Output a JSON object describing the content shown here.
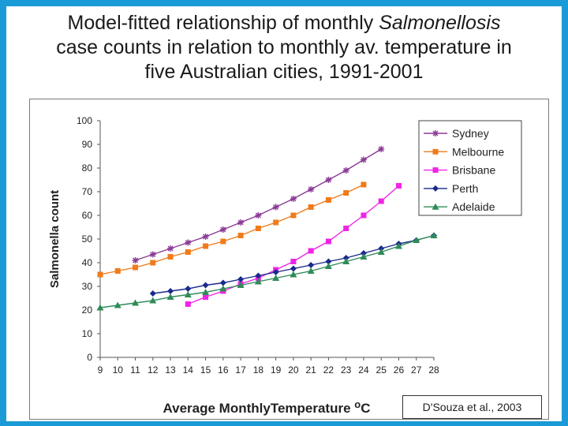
{
  "slide": {
    "title_part1": "Model-fitted relationship  of monthly ",
    "title_italic": "Salmonellosis",
    "title_line2": "case counts in relation  to monthly  av. temperature  in",
    "title_line3": "five Australian  cities, 1991-2001",
    "citation": "D'Souza et al., 2003"
  },
  "chart_data": {
    "type": "line",
    "title": "",
    "xlabel": "Average MonthlyTemperature ",
    "xlabel_unit": "oC",
    "ylabel": "Salmonella count",
    "xlim": [
      9,
      28
    ],
    "ylim": [
      0,
      100
    ],
    "x_ticks": [
      9,
      10,
      11,
      12,
      13,
      14,
      15,
      16,
      17,
      18,
      19,
      20,
      21,
      22,
      23,
      24,
      25,
      26,
      27,
      28
    ],
    "y_ticks": [
      0,
      10,
      20,
      30,
      40,
      50,
      60,
      70,
      80,
      90,
      100
    ],
    "legend_position": "top-right",
    "series": [
      {
        "name": "Sydney",
        "color": "#8b3a96",
        "marker": "star",
        "x": [
          11,
          12,
          13,
          14,
          15,
          16,
          17,
          18,
          19,
          20,
          21,
          22,
          23,
          24,
          25
        ],
        "y": [
          41,
          43.5,
          46,
          48.5,
          51,
          54,
          57,
          60,
          63.5,
          67,
          71,
          75,
          79,
          83.5,
          88
        ]
      },
      {
        "name": "Melbourne",
        "color": "#f07b1a",
        "marker": "square",
        "x": [
          9,
          10,
          11,
          12,
          13,
          14,
          15,
          16,
          17,
          18,
          19,
          20,
          21,
          22,
          23,
          24
        ],
        "y": [
          35,
          36.5,
          38,
          40,
          42.5,
          44.5,
          47,
          49,
          51.5,
          54.5,
          57,
          60,
          63.5,
          66.5,
          69.5,
          73
        ]
      },
      {
        "name": "Brisbane",
        "color": "#f024e6",
        "marker": "square",
        "x": [
          14,
          15,
          16,
          17,
          18,
          19,
          20,
          21,
          22,
          23,
          24,
          25,
          26
        ],
        "y": [
          22.5,
          25.5,
          28,
          31,
          33.5,
          37,
          40.5,
          45,
          49,
          54.5,
          60,
          66,
          72.5
        ]
      },
      {
        "name": "Perth",
        "color": "#1a2a8c",
        "marker": "diamond",
        "x": [
          12,
          13,
          14,
          15,
          16,
          17,
          18,
          19,
          20,
          21,
          22,
          23,
          24,
          25,
          26,
          27,
          28
        ],
        "y": [
          27,
          28,
          29,
          30.5,
          31.5,
          33,
          34.5,
          36,
          37.5,
          39,
          40.5,
          42,
          44,
          46,
          48,
          49.5,
          51.5
        ]
      },
      {
        "name": "Adelaide",
        "color": "#2e8b57",
        "marker": "triangle",
        "x": [
          9,
          10,
          11,
          12,
          13,
          14,
          15,
          16,
          17,
          18,
          19,
          20,
          21,
          22,
          23,
          24,
          25,
          26,
          27,
          28
        ],
        "y": [
          21,
          22,
          23,
          24,
          25.5,
          26.5,
          27.5,
          29,
          30.5,
          32,
          33.5,
          35,
          36.5,
          38.5,
          40.5,
          42.5,
          44.5,
          47,
          49.5,
          51.5
        ]
      }
    ]
  }
}
